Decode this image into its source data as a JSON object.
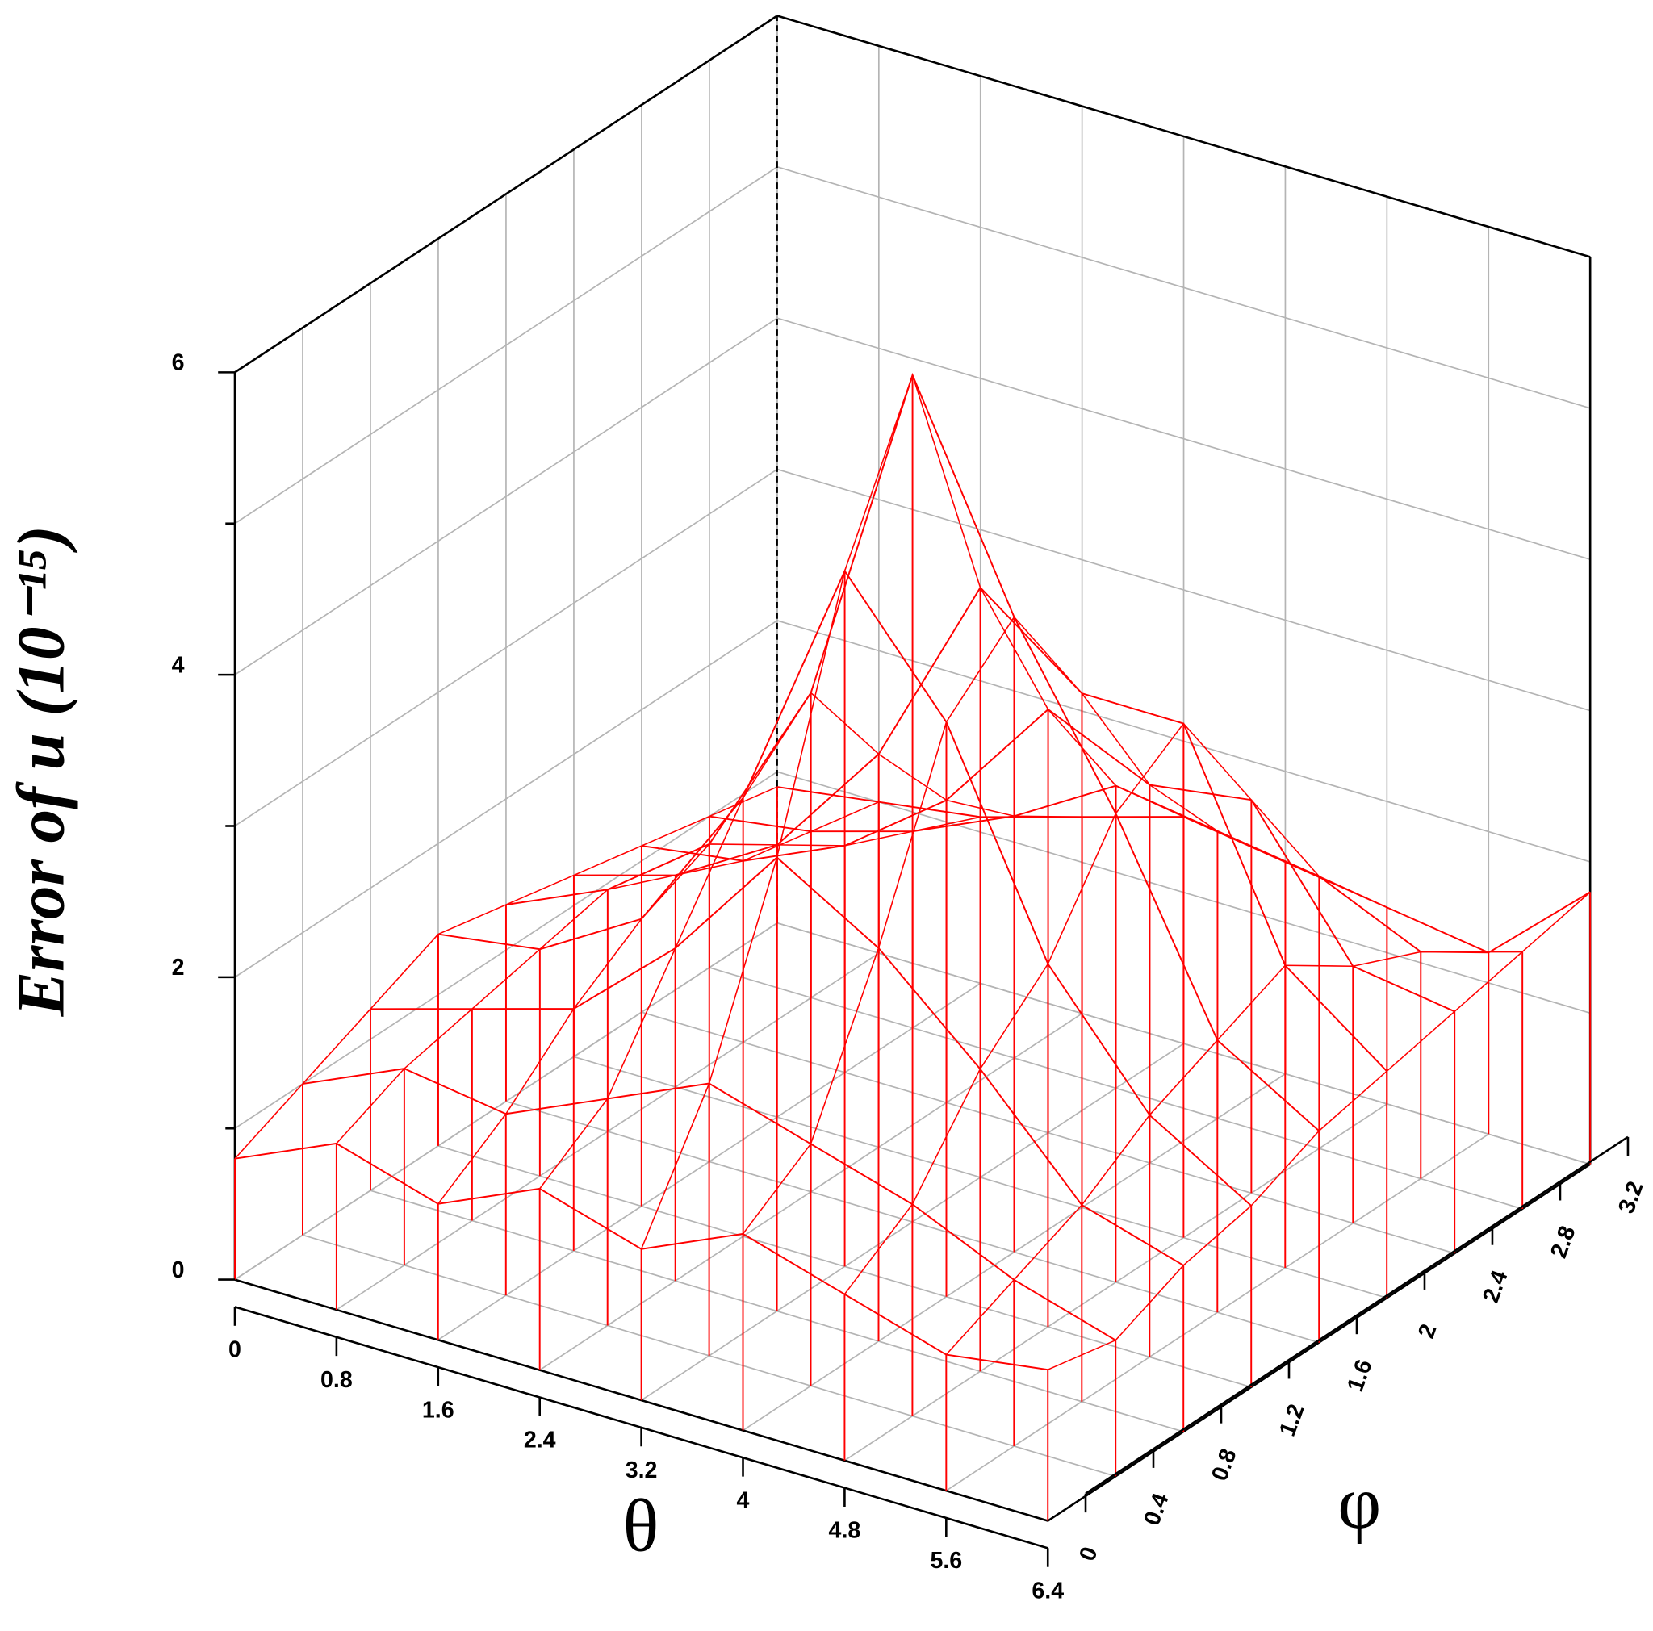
{
  "chart_data": {
    "type": "wireframe3d",
    "xlabel": "θ",
    "ylabel": "φ",
    "zlabel": "Error of u (10⁻¹⁵)",
    "x": [
      0,
      0.8,
      1.6,
      2.4,
      3.2,
      4,
      4.8,
      5.6,
      6.4
    ],
    "y": [
      0,
      0.4,
      0.8,
      1.2,
      1.6,
      2,
      2.4,
      2.8,
      3.2
    ],
    "z": [
      [
        0.8,
        1.1,
        0.9,
        1.2,
        1.0,
        1.3,
        1.1,
        0.9,
        1.0
      ],
      [
        1.0,
        1.3,
        1.2,
        1.5,
        1.8,
        1.6,
        1.4,
        1.1,
        0.9
      ],
      [
        1.2,
        1.4,
        1.6,
        2.2,
        3.0,
        2.6,
        2.0,
        1.3,
        1.1
      ],
      [
        1.4,
        1.5,
        1.9,
        2.9,
        4.6,
        3.8,
        2.4,
        1.6,
        1.2
      ],
      [
        1.3,
        1.6,
        2.1,
        3.3,
        5.6,
        4.2,
        3.1,
        1.8,
        1.4
      ],
      [
        1.2,
        1.4,
        1.8,
        2.6,
        3.9,
        3.4,
        3.4,
        2.0,
        1.5
      ],
      [
        1.1,
        1.2,
        1.5,
        2.0,
        2.8,
        2.5,
        2.6,
        1.7,
        1.6
      ],
      [
        1.0,
        1.1,
        1.3,
        1.6,
        2.0,
        1.9,
        1.8,
        1.5,
        1.7
      ],
      [
        0.9,
        1.0,
        1.1,
        1.3,
        1.5,
        1.4,
        1.3,
        1.2,
        1.8
      ]
    ],
    "color": "#ff0000",
    "xlim": [
      0,
      6.4
    ],
    "xticks": [
      0,
      0.8,
      1.6,
      2.4,
      3.2,
      4,
      4.8,
      5.6,
      6.4
    ],
    "ylim": [
      0,
      3.2
    ],
    "yticks": [
      0,
      0.4,
      0.8,
      1.2,
      1.6,
      2,
      2.4,
      2.8,
      3.2
    ],
    "zlim": [
      0,
      6
    ],
    "zticks": [
      0,
      2,
      4,
      6
    ],
    "z_minor_ticks": [
      1,
      3,
      5
    ],
    "grid": true
  }
}
